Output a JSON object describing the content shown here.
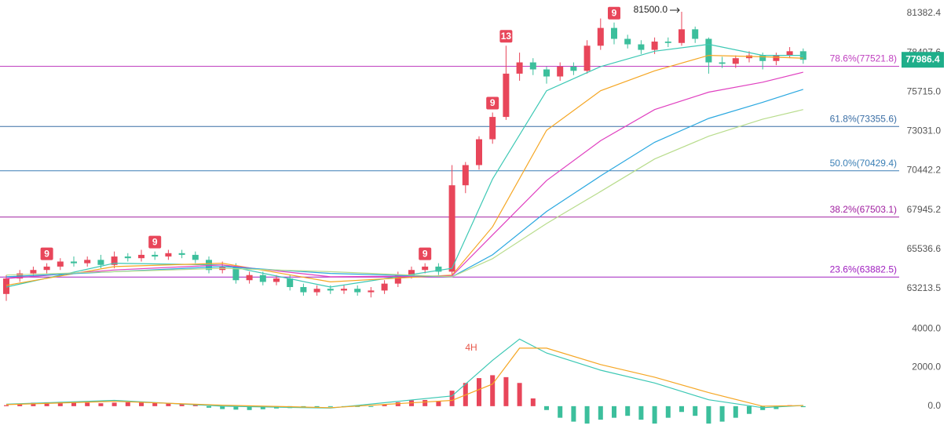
{
  "chart_data": [
    {
      "type": "candlestick",
      "log_scale": true,
      "ylim": [
        61769,
        82386
      ],
      "yticks": [
        63213.5,
        65536.6,
        67945.2,
        70442.2,
        {
          "value": 73031,
          "label": "73031.0"
        },
        {
          "value": 75715,
          "label": "75715.0"
        },
        78497.6,
        81382.4
      ],
      "up_color": "#e8465a",
      "down_color": "#3cbf9c",
      "last_price_color": "#1fae8a",
      "open": [
        62900,
        63800,
        64100,
        64300,
        64500,
        64800,
        64700,
        64900,
        64600,
        65100,
        65000,
        65200,
        65100,
        65300,
        65200,
        64900,
        64300,
        64500,
        63700,
        64000,
        63600,
        63800,
        63300,
        63000,
        63200,
        63100,
        63200,
        63000,
        63100,
        63500,
        64000,
        64300,
        64500,
        64200,
        69500,
        70800,
        72500,
        74000,
        77000,
        77800,
        77300,
        76800,
        77500,
        77200,
        79000,
        80300,
        79500,
        79100,
        78700,
        79300,
        79200,
        80200,
        79500,
        77800,
        77700,
        78100,
        78300,
        77900,
        78300,
        78600
      ],
      "high": [
        64000,
        64300,
        64500,
        64700,
        65000,
        65100,
        65100,
        65200,
        65400,
        65300,
        65500,
        65400,
        65500,
        65500,
        65400,
        65100,
        64800,
        64700,
        64200,
        64200,
        64000,
        64000,
        63500,
        63400,
        63400,
        63400,
        63400,
        63300,
        63700,
        64200,
        64500,
        64700,
        64700,
        70800,
        71000,
        72700,
        74300,
        79000,
        78500,
        78100,
        77500,
        77800,
        77800,
        79400,
        81000,
        80700,
        79800,
        79400,
        79600,
        79600,
        81500,
        80400,
        79600,
        78200,
        78300,
        78600,
        78500,
        78500,
        78900,
        78800
      ],
      "low": [
        62500,
        63600,
        63900,
        64100,
        64300,
        64500,
        64500,
        64400,
        64400,
        64800,
        64800,
        64900,
        64900,
        65000,
        64700,
        64100,
        64100,
        63500,
        63500,
        63400,
        63400,
        63100,
        62800,
        62800,
        62900,
        62900,
        62800,
        62700,
        62900,
        63300,
        63800,
        64100,
        64000,
        64000,
        69000,
        70500,
        72200,
        73800,
        76500,
        76900,
        76300,
        76500,
        76900,
        77000,
        78700,
        79100,
        78800,
        78400,
        78400,
        78900,
        79000,
        79200,
        77000,
        77400,
        77400,
        77800,
        77300,
        77600,
        78100,
        77700
      ],
      "close": [
        63800,
        64100,
        64300,
        64500,
        64800,
        64700,
        64900,
        64600,
        65100,
        65000,
        65200,
        65100,
        65300,
        65200,
        64900,
        64300,
        64500,
        63700,
        64000,
        63600,
        63800,
        63300,
        63000,
        63200,
        63100,
        63200,
        63000,
        63100,
        63500,
        64000,
        64300,
        64500,
        64200,
        69500,
        70800,
        72500,
        74000,
        77000,
        77800,
        77300,
        76800,
        77500,
        77200,
        79000,
        80300,
        79500,
        79100,
        78700,
        79300,
        79200,
        80200,
        79500,
        77800,
        77700,
        78100,
        78300,
        77900,
        78300,
        78600,
        77986.4
      ],
      "lines": [
        {
          "color": "#3cc8b4",
          "x": [
            0,
            8,
            16,
            24,
            33,
            36,
            40,
            44,
            48,
            52,
            56,
            59
          ],
          "values": [
            63300,
            64700,
            64600,
            63300,
            64400,
            69900,
            75800,
            77500,
            78600,
            79100,
            78300,
            78300
          ]
        },
        {
          "color": "#f5a623",
          "x": [
            0,
            8,
            16,
            24,
            33,
            36,
            40,
            44,
            48,
            52,
            56,
            59
          ],
          "values": [
            63400,
            64500,
            64700,
            63600,
            64000,
            66900,
            73100,
            75800,
            77200,
            78300,
            78200,
            78100
          ]
        },
        {
          "color": "#e040c0",
          "x": [
            0,
            8,
            16,
            24,
            33,
            36,
            40,
            44,
            48,
            52,
            56,
            59
          ],
          "values": [
            63800,
            64300,
            64600,
            63900,
            63950,
            66400,
            69800,
            72400,
            74500,
            75700,
            76400,
            77100
          ]
        },
        {
          "color": "#2aa8e0",
          "x": [
            0,
            8,
            16,
            24,
            33,
            36,
            40,
            44,
            48,
            52,
            56,
            59
          ],
          "values": [
            63900,
            64200,
            64500,
            64100,
            63900,
            65200,
            67850,
            70100,
            72300,
            73900,
            75000,
            75900
          ]
        },
        {
          "color": "#b8dc8c",
          "x": [
            0,
            8,
            16,
            24,
            33,
            36,
            40,
            44,
            48,
            52,
            56,
            59
          ],
          "values": [
            64000,
            64200,
            64400,
            64200,
            63900,
            64970,
            67100,
            69100,
            71200,
            72700,
            73850,
            74500
          ]
        }
      ],
      "fib_levels": [
        {
          "label": "78.6%(77521.8)",
          "value": 77521.8,
          "color": "#c040c0"
        },
        {
          "label": "61.8%(73355.6)",
          "value": 73355.6,
          "color": "#3a6ea5"
        },
        {
          "label": "50.0%(70429.4)",
          "value": 70429.4,
          "color": "#3a7fb5"
        },
        {
          "label": "38.2%(67503.1)",
          "value": 67503.1,
          "color": "#a020a0"
        },
        {
          "label": "23.6%(63882.5)",
          "value": 63882.5,
          "color": "#a020c0"
        }
      ],
      "td_marks": [
        {
          "label": "9",
          "candle": 3
        },
        {
          "label": "9",
          "candle": 11
        },
        {
          "label": "9",
          "candle": 31
        },
        {
          "label": "9",
          "candle": 36
        },
        {
          "label": "13",
          "candle": 37
        },
        {
          "label": "9",
          "candle": 45
        }
      ],
      "high_label": {
        "value": 81500,
        "label": "81500.0",
        "candle": 50
      }
    },
    {
      "type": "macd",
      "annotation": "4H",
      "ylim": [
        -1750,
        4780
      ],
      "yticks": [
        {
          "value": 0,
          "label": "0.0"
        },
        {
          "value": 2000,
          "label": "2000.0"
        },
        {
          "value": 4000,
          "label": "4000.0"
        }
      ],
      "up_color": "#e8465a",
      "down_color": "#3cbf9c",
      "histogram": [
        50,
        120,
        180,
        200,
        220,
        200,
        180,
        150,
        180,
        200,
        220,
        180,
        150,
        120,
        60,
        -80,
        -150,
        -180,
        -200,
        -160,
        -120,
        -100,
        -80,
        -60,
        -40,
        -50,
        -30,
        -20,
        80,
        200,
        300,
        320,
        250,
        800,
        1200,
        1450,
        1600,
        1500,
        1200,
        400,
        -200,
        -600,
        -800,
        -900,
        -700,
        -600,
        -500,
        -700,
        -900,
        -600,
        -300,
        -500,
        -900,
        -800,
        -600,
        -400,
        -200,
        -150,
        50,
        -50
      ],
      "lines": [
        {
          "color": "#3cc8b4",
          "x": [
            0,
            8,
            16,
            24,
            33,
            36,
            38,
            40,
            44,
            48,
            52,
            56,
            59
          ],
          "values": [
            100,
            300,
            0,
            -100,
            530,
            2370,
            3470,
            2750,
            1860,
            1200,
            330,
            -80,
            40
          ]
        },
        {
          "color": "#f5a623",
          "x": [
            0,
            8,
            16,
            24,
            33,
            36,
            38,
            40,
            44,
            48,
            52,
            56,
            59
          ],
          "values": [
            80,
            250,
            50,
            -80,
            300,
            1140,
            3000,
            3000,
            2150,
            1500,
            700,
            0,
            30
          ]
        }
      ]
    }
  ]
}
